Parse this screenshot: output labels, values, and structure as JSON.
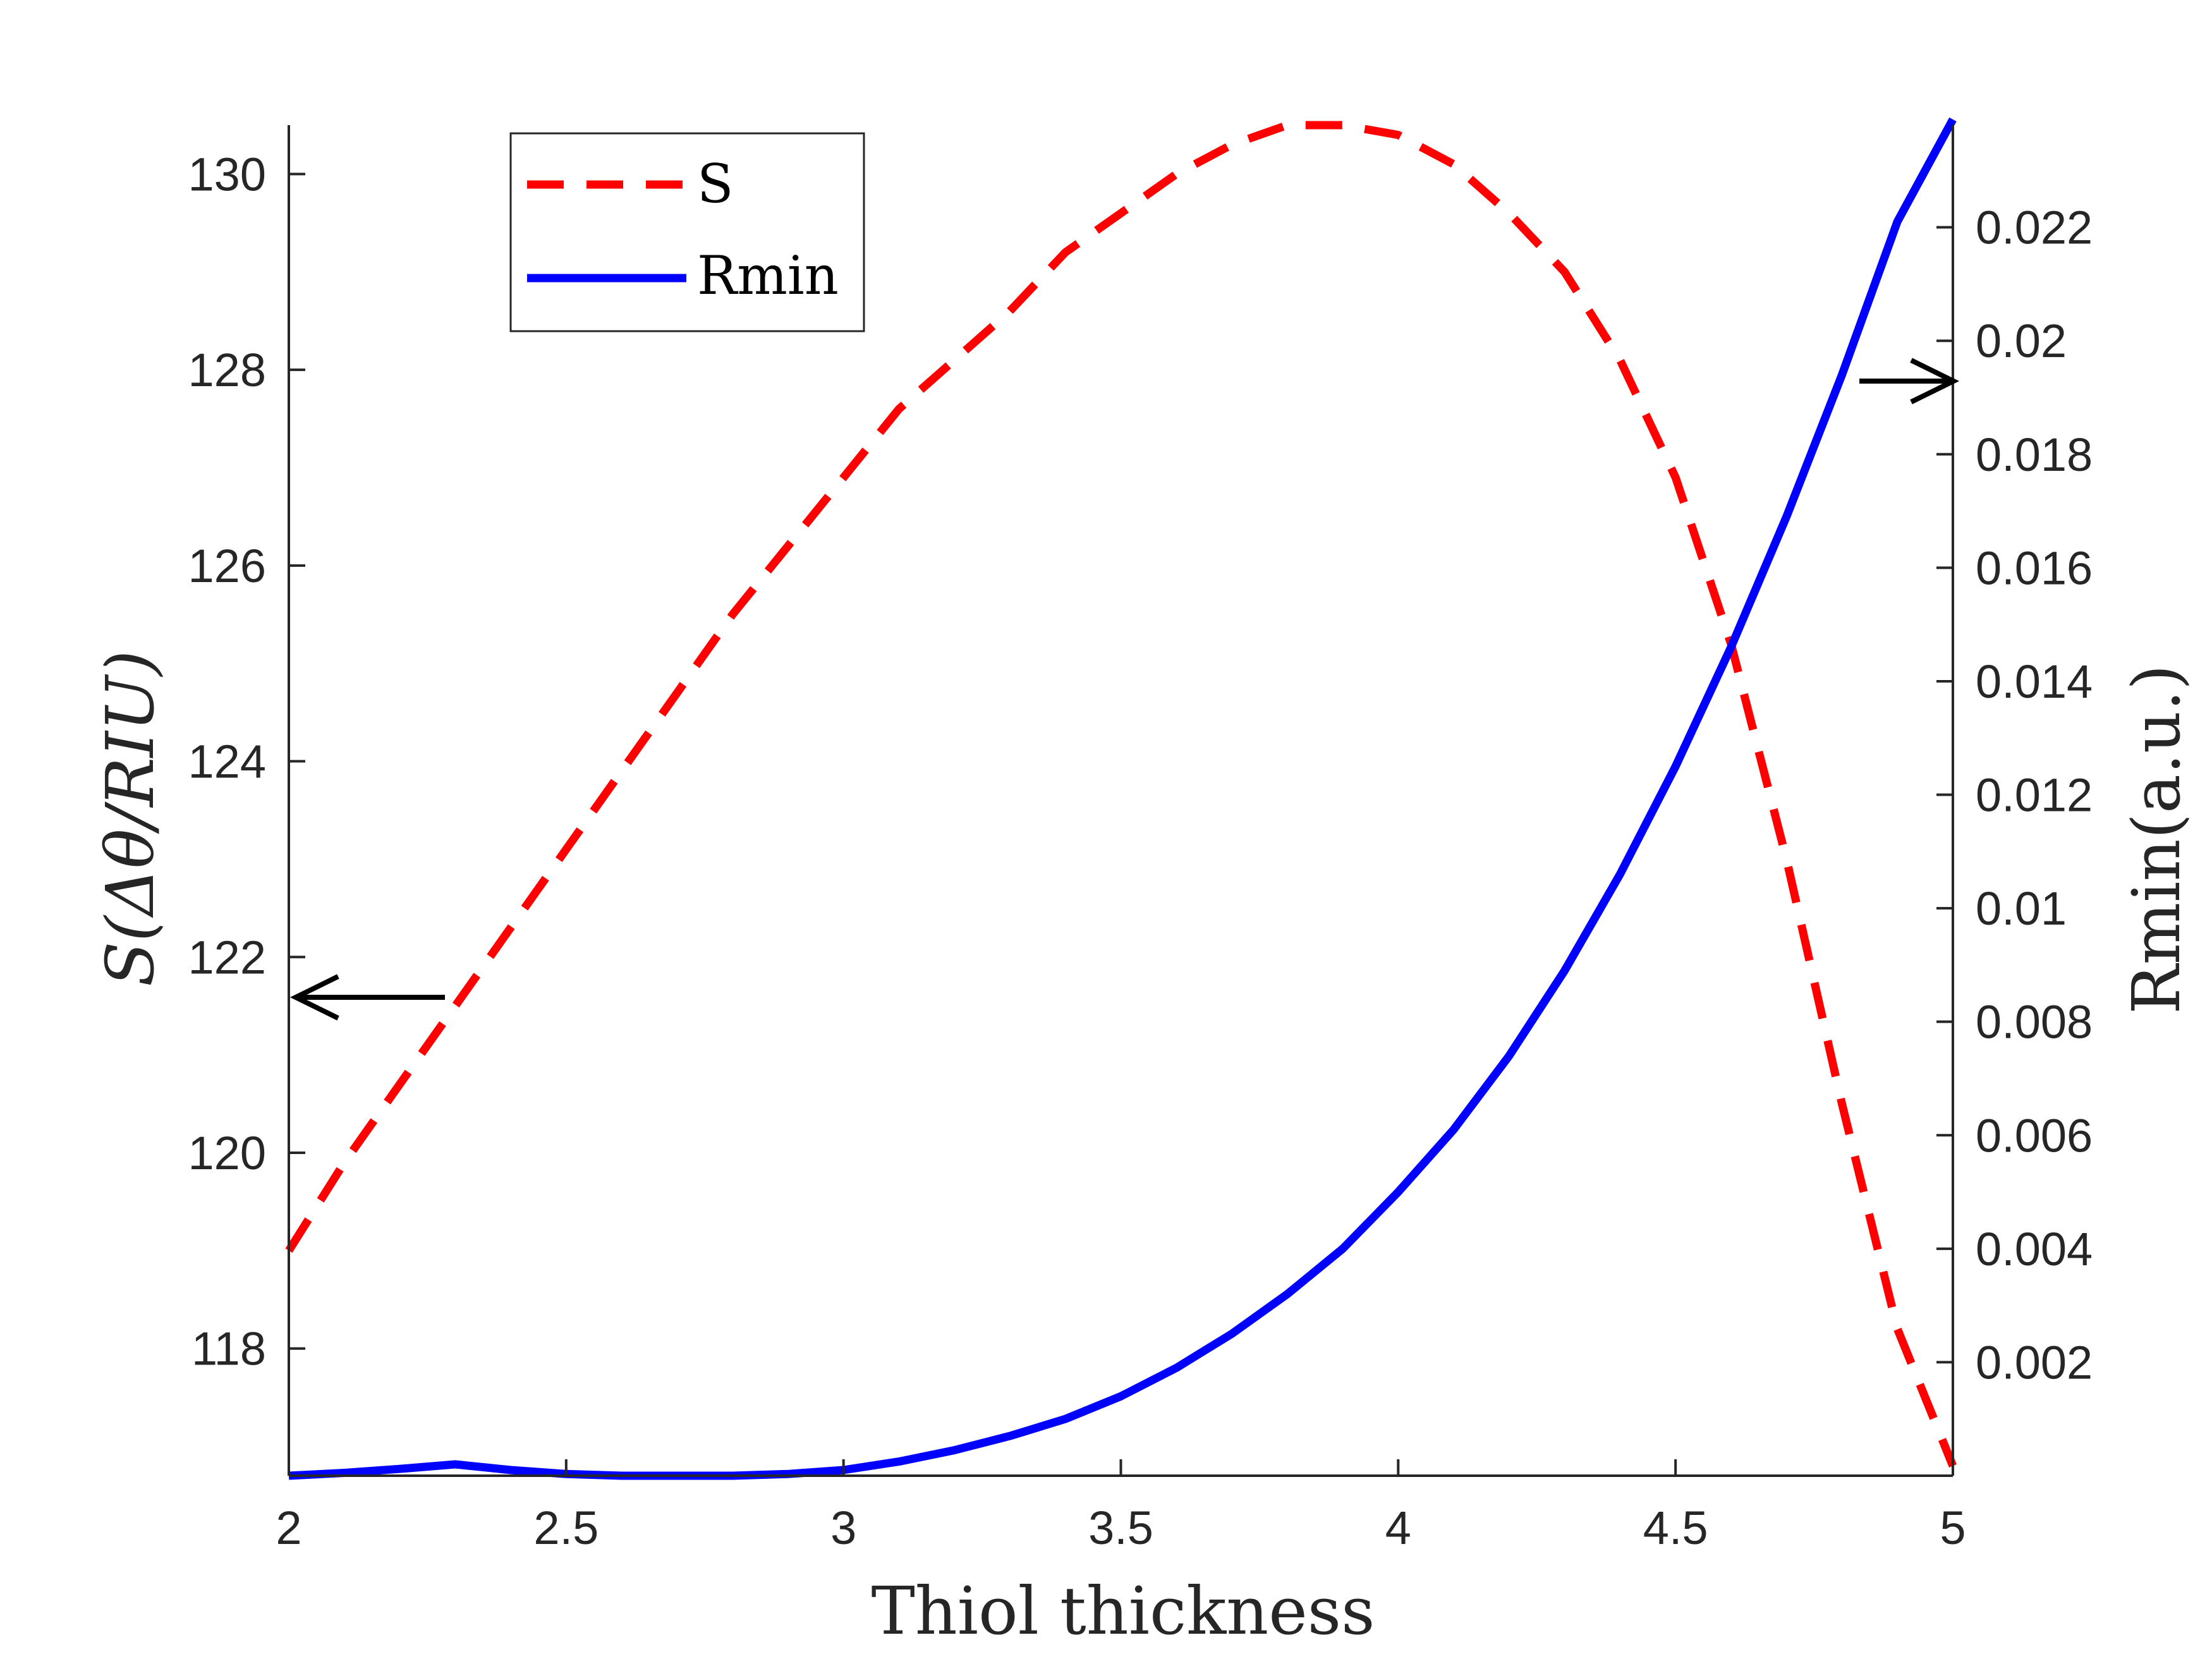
{
  "chart_data": {
    "type": "line",
    "xlabel": "Thiol thickness",
    "ylabel_left": "S(Δθ/RIU)",
    "ylabel_right": "Rmin(a.u.)",
    "xlim": [
      2,
      5
    ],
    "ylim_left": [
      116.7,
      130.5
    ],
    "ylim_right": [
      0,
      0.0238
    ],
    "x_ticks": [
      2,
      2.5,
      3,
      3.5,
      4,
      4.5,
      5
    ],
    "x_tick_labels": [
      "2",
      "2.5",
      "3",
      "3.5",
      "4",
      "4.5",
      "5"
    ],
    "y_left_ticks": [
      118,
      120,
      122,
      124,
      126,
      128,
      130
    ],
    "y_left_tick_labels": [
      "118",
      "120",
      "122",
      "124",
      "126",
      "128",
      "130"
    ],
    "y_right_ticks": [
      0.002,
      0.004,
      0.006,
      0.008,
      0.01,
      0.012,
      0.014,
      0.016,
      0.018,
      0.02,
      0.022
    ],
    "y_right_tick_labels": [
      "0.002",
      "0.004",
      "0.006",
      "0.008",
      "0.01",
      "0.012",
      "0.014",
      "0.016",
      "0.018",
      "0.02",
      "0.022"
    ],
    "grid": false,
    "legend_position": "top-left",
    "series": [
      {
        "name": "S",
        "axis": "left",
        "color": "#ff0000",
        "style": "dashed",
        "x": [
          2,
          2.1,
          2.2,
          2.3,
          2.4,
          2.5,
          2.6,
          2.7,
          2.8,
          2.9,
          3.0,
          3.1,
          3.2,
          3.3,
          3.4,
          3.5,
          3.6,
          3.7,
          3.8,
          3.9,
          4.0,
          4.1,
          4.2,
          4.3,
          4.4,
          4.5,
          4.6,
          4.7,
          4.8,
          4.9,
          5.0
        ],
        "values": [
          119.0,
          119.9,
          120.7,
          121.5,
          122.3,
          123.1,
          123.9,
          124.7,
          125.5,
          126.2,
          126.9,
          127.6,
          128.1,
          128.6,
          129.2,
          129.6,
          130.0,
          130.3,
          130.5,
          130.5,
          130.4,
          130.1,
          129.6,
          129.0,
          128.1,
          126.9,
          125.2,
          123.0,
          120.5,
          118.2,
          116.8
        ]
      },
      {
        "name": "Rmin",
        "axis": "right",
        "color": "#0000ff",
        "style": "solid",
        "x": [
          2,
          2.1,
          2.2,
          2.3,
          2.4,
          2.5,
          2.6,
          2.7,
          2.8,
          2.9,
          3.0,
          3.1,
          3.2,
          3.3,
          3.4,
          3.5,
          3.6,
          3.7,
          3.8,
          3.9,
          4.0,
          4.1,
          4.2,
          4.3,
          4.4,
          4.5,
          4.6,
          4.7,
          4.8,
          4.9,
          5.0
        ],
        "values": [
          0.0,
          5e-05,
          0.00012,
          0.0002,
          0.0001,
          3e-05,
          0.0,
          0.0,
          0.0,
          3e-05,
          0.0001,
          0.00025,
          0.00045,
          0.0007,
          0.001,
          0.0014,
          0.0019,
          0.0025,
          0.0032,
          0.004,
          0.005,
          0.0061,
          0.0074,
          0.0089,
          0.0106,
          0.0125,
          0.0146,
          0.0169,
          0.0194,
          0.0221,
          0.0239
        ]
      }
    ]
  }
}
